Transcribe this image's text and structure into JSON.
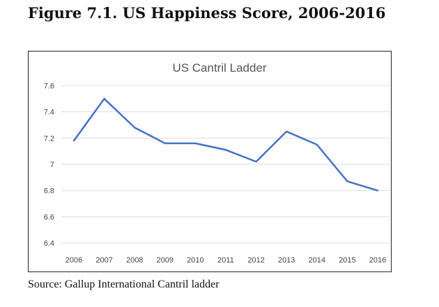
{
  "figure_title": "Figure 7.1. US Happiness Score, 2006-2016",
  "source": "Source: Gallup International Cantril ladder",
  "chart_data": {
    "type": "line",
    "title": "US Cantril Ladder",
    "xlabel": "",
    "ylabel": "",
    "categories": [
      "2006",
      "2007",
      "2008",
      "2009",
      "2010",
      "2011",
      "2012",
      "2013",
      "2014",
      "2015",
      "2016"
    ],
    "series": [
      {
        "name": "US Cantril Ladder",
        "values": [
          7.18,
          7.5,
          7.28,
          7.16,
          7.16,
          7.11,
          7.02,
          7.25,
          7.15,
          6.87,
          6.8
        ],
        "color": "#4472c4"
      }
    ],
    "ylim": [
      6.4,
      7.6
    ],
    "yticks": [
      "6.4",
      "6.6",
      "6.8",
      "7",
      "7.2",
      "7.4",
      "7.6"
    ],
    "grid": true,
    "legend": "none"
  }
}
